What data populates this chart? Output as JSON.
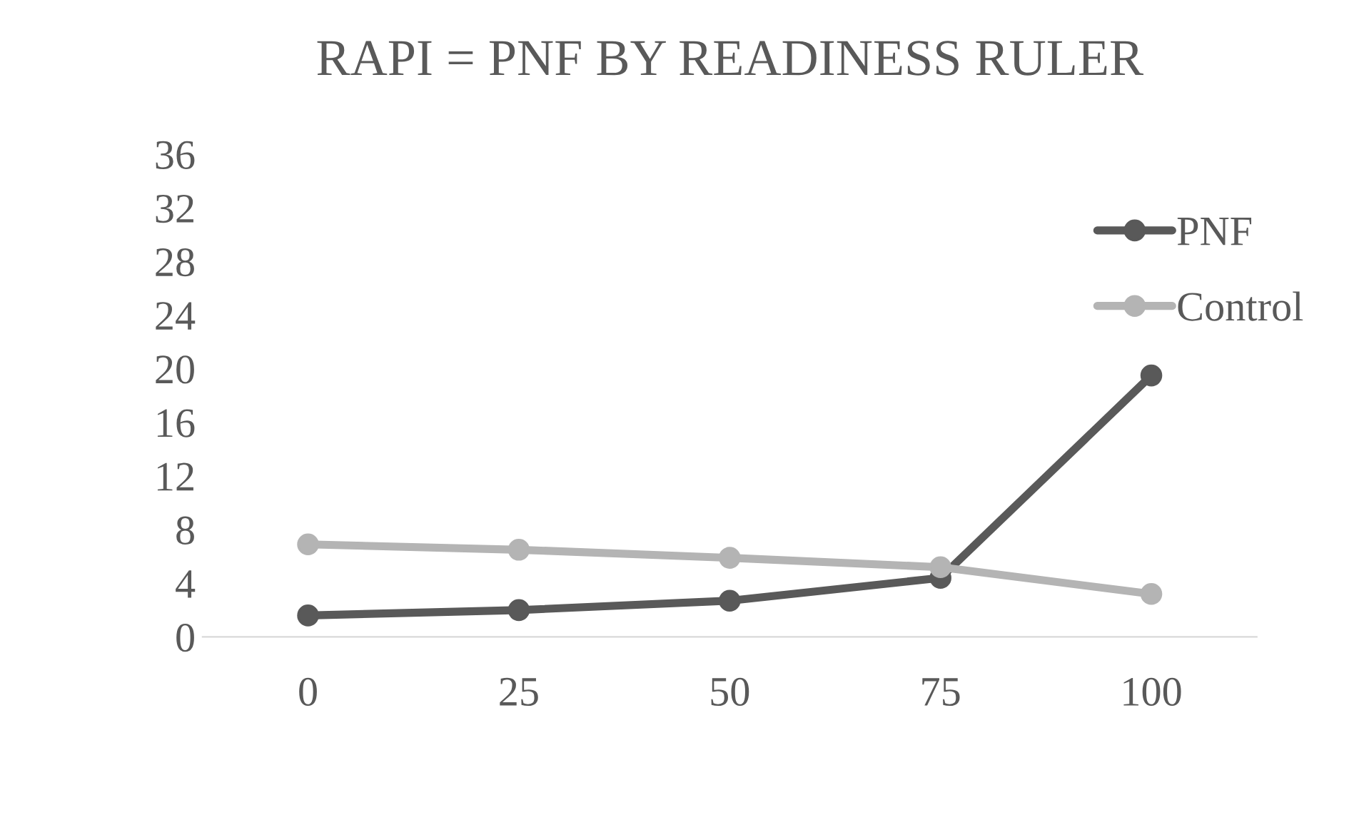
{
  "chart_data": {
    "type": "line",
    "title": "RAPI = PNF BY READINESS RULER",
    "categories": [
      "0",
      "25",
      "50",
      "75",
      "100"
    ],
    "series": [
      {
        "name": "PNF",
        "color": "#595959",
        "values": [
          1.6,
          2.0,
          2.7,
          4.4,
          19.5
        ]
      },
      {
        "name": "Control",
        "color": "#b4b4b4",
        "values": [
          6.9,
          6.5,
          5.9,
          5.2,
          3.2
        ]
      }
    ],
    "ylim": [
      0,
      36
    ],
    "yticks": [
      0,
      4,
      8,
      12,
      16,
      20,
      24,
      28,
      32,
      36
    ],
    "grid": false,
    "legend": "top right",
    "marker": "circle",
    "line_style": "solid"
  }
}
